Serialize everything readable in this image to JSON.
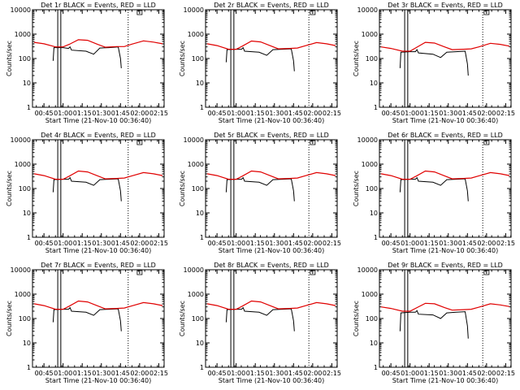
{
  "colors": {
    "events": "#000000",
    "lld": "#e00000",
    "background": "#ffffff"
  },
  "chart_data": {
    "type": "line",
    "panel_count": 9,
    "ylabel": "Counts/sec",
    "xlabel": "Start Time (21-Nov-10 00:36:40)",
    "y_scale": "log",
    "ylim": [
      1,
      10000
    ],
    "y_tick_labels": [
      "1",
      "10",
      "100",
      "1000",
      "10000"
    ],
    "xlim": [
      0.6,
      2.32
    ],
    "x_ticks": [
      0.75,
      1.0,
      1.25,
      1.5,
      1.75,
      2.0,
      2.25
    ],
    "x_tick_labels": [
      "00:45",
      "01:00",
      "01:15",
      "01:30",
      "01:45",
      "02:00",
      "02:15"
    ],
    "panels": [
      {
        "title": "Det 1r  BLACK = Events, RED = LLD",
        "vlines_solid": [
          0.93,
          0.97
        ],
        "vlines_dotted": [
          1.85
        ],
        "events": [
          [
            0.87,
            80
          ],
          [
            0.88,
            280
          ],
          [
            1.0,
            280
          ],
          [
            1.07,
            260
          ],
          [
            1.09,
            300
          ],
          [
            1.11,
            220
          ],
          [
            1.3,
            200
          ],
          [
            1.4,
            150
          ],
          [
            1.48,
            270
          ],
          [
            1.6,
            280
          ],
          [
            1.72,
            300
          ],
          [
            1.75,
            100
          ],
          [
            1.76,
            40
          ]
        ],
        "lld": [
          [
            0.62,
            460
          ],
          [
            0.75,
            400
          ],
          [
            0.9,
            300
          ],
          [
            1.0,
            300
          ],
          [
            1.08,
            380
          ],
          [
            1.2,
            590
          ],
          [
            1.32,
            560
          ],
          [
            1.45,
            380
          ],
          [
            1.55,
            290
          ],
          [
            1.7,
            310
          ],
          [
            1.8,
            310
          ],
          [
            1.9,
            390
          ],
          [
            2.05,
            530
          ],
          [
            2.18,
            470
          ],
          [
            2.3,
            400
          ]
        ]
      },
      {
        "title": "Det 2r  BLACK = Events, RED = LLD",
        "vlines_solid": [
          0.93,
          0.97
        ],
        "vlines_dotted": [
          1.95
        ],
        "events": [
          [
            0.87,
            70
          ],
          [
            0.88,
            230
          ],
          [
            1.0,
            240
          ],
          [
            1.07,
            240
          ],
          [
            1.09,
            280
          ],
          [
            1.11,
            200
          ],
          [
            1.3,
            180
          ],
          [
            1.4,
            135
          ],
          [
            1.48,
            230
          ],
          [
            1.6,
            240
          ],
          [
            1.72,
            250
          ],
          [
            1.75,
            80
          ],
          [
            1.76,
            30
          ]
        ],
        "lld": [
          [
            0.62,
            400
          ],
          [
            0.75,
            340
          ],
          [
            0.9,
            240
          ],
          [
            1.0,
            240
          ],
          [
            1.08,
            320
          ],
          [
            1.2,
            520
          ],
          [
            1.32,
            480
          ],
          [
            1.45,
            330
          ],
          [
            1.55,
            250
          ],
          [
            1.7,
            260
          ],
          [
            1.8,
            270
          ],
          [
            1.9,
            330
          ],
          [
            2.05,
            450
          ],
          [
            2.18,
            400
          ],
          [
            2.3,
            340
          ]
        ]
      },
      {
        "title": "Det 3r  BLACK = Events, RED = LLD",
        "vlines_solid": [
          0.93,
          0.97
        ],
        "vlines_dotted": [
          1.95
        ],
        "events": [
          [
            0.87,
            40
          ],
          [
            0.88,
            180
          ],
          [
            1.0,
            190
          ],
          [
            1.07,
            190
          ],
          [
            1.09,
            230
          ],
          [
            1.11,
            170
          ],
          [
            1.3,
            150
          ],
          [
            1.4,
            110
          ],
          [
            1.48,
            180
          ],
          [
            1.6,
            190
          ],
          [
            1.72,
            200
          ],
          [
            1.75,
            60
          ],
          [
            1.76,
            20
          ]
        ],
        "lld": [
          [
            0.62,
            300
          ],
          [
            0.75,
            260
          ],
          [
            0.9,
            200
          ],
          [
            1.0,
            200
          ],
          [
            1.08,
            280
          ],
          [
            1.2,
            460
          ],
          [
            1.32,
            430
          ],
          [
            1.45,
            300
          ],
          [
            1.55,
            230
          ],
          [
            1.7,
            240
          ],
          [
            1.8,
            250
          ],
          [
            1.9,
            300
          ],
          [
            2.05,
            420
          ],
          [
            2.18,
            380
          ],
          [
            2.3,
            320
          ]
        ]
      },
      {
        "title": "Det 4r  BLACK = Events, RED = LLD",
        "vlines_solid": [
          0.93,
          0.97
        ],
        "vlines_dotted": [
          1.85
        ],
        "events": [
          [
            0.87,
            70
          ],
          [
            0.88,
            230
          ],
          [
            1.0,
            240
          ],
          [
            1.07,
            240
          ],
          [
            1.09,
            280
          ],
          [
            1.11,
            200
          ],
          [
            1.3,
            180
          ],
          [
            1.4,
            135
          ],
          [
            1.48,
            230
          ],
          [
            1.6,
            240
          ],
          [
            1.72,
            250
          ],
          [
            1.75,
            80
          ],
          [
            1.76,
            30
          ]
        ],
        "lld": [
          [
            0.62,
            400
          ],
          [
            0.75,
            340
          ],
          [
            0.9,
            240
          ],
          [
            1.0,
            240
          ],
          [
            1.08,
            320
          ],
          [
            1.2,
            520
          ],
          [
            1.32,
            480
          ],
          [
            1.45,
            330
          ],
          [
            1.55,
            250
          ],
          [
            1.7,
            260
          ],
          [
            1.8,
            270
          ],
          [
            1.9,
            330
          ],
          [
            2.05,
            450
          ],
          [
            2.18,
            400
          ],
          [
            2.3,
            340
          ]
        ]
      },
      {
        "title": "Det 5r  BLACK = Events, RED = LLD",
        "vlines_solid": [
          0.93,
          0.97
        ],
        "vlines_dotted": [
          1.95
        ],
        "events": [
          [
            0.87,
            70
          ],
          [
            0.88,
            230
          ],
          [
            1.0,
            240
          ],
          [
            1.07,
            240
          ],
          [
            1.09,
            280
          ],
          [
            1.11,
            200
          ],
          [
            1.3,
            180
          ],
          [
            1.4,
            135
          ],
          [
            1.48,
            230
          ],
          [
            1.6,
            240
          ],
          [
            1.72,
            250
          ],
          [
            1.75,
            80
          ],
          [
            1.76,
            30
          ]
        ],
        "lld": [
          [
            0.62,
            400
          ],
          [
            0.75,
            340
          ],
          [
            0.9,
            240
          ],
          [
            1.0,
            240
          ],
          [
            1.08,
            320
          ],
          [
            1.2,
            520
          ],
          [
            1.32,
            480
          ],
          [
            1.45,
            330
          ],
          [
            1.55,
            250
          ],
          [
            1.7,
            260
          ],
          [
            1.8,
            270
          ],
          [
            1.9,
            330
          ],
          [
            2.05,
            450
          ],
          [
            2.18,
            400
          ],
          [
            2.3,
            340
          ]
        ]
      },
      {
        "title": "Det 6r  BLACK = Events, RED = LLD",
        "vlines_solid": [
          0.93,
          0.97
        ],
        "vlines_dotted": [
          1.95
        ],
        "events": [
          [
            0.87,
            70
          ],
          [
            0.88,
            230
          ],
          [
            1.0,
            240
          ],
          [
            1.07,
            240
          ],
          [
            1.09,
            280
          ],
          [
            1.11,
            200
          ],
          [
            1.3,
            180
          ],
          [
            1.4,
            135
          ],
          [
            1.48,
            230
          ],
          [
            1.6,
            240
          ],
          [
            1.72,
            250
          ],
          [
            1.75,
            80
          ],
          [
            1.76,
            30
          ]
        ],
        "lld": [
          [
            0.62,
            400
          ],
          [
            0.75,
            340
          ],
          [
            0.9,
            240
          ],
          [
            1.0,
            240
          ],
          [
            1.08,
            320
          ],
          [
            1.2,
            520
          ],
          [
            1.32,
            480
          ],
          [
            1.45,
            330
          ],
          [
            1.55,
            250
          ],
          [
            1.7,
            260
          ],
          [
            1.8,
            270
          ],
          [
            1.9,
            330
          ],
          [
            2.05,
            450
          ],
          [
            2.18,
            400
          ],
          [
            2.3,
            340
          ]
        ]
      },
      {
        "title": "Det 7r  BLACK = Events, RED = LLD",
        "vlines_solid": [
          0.93,
          0.97
        ],
        "vlines_dotted": [
          1.85
        ],
        "events": [
          [
            0.87,
            70
          ],
          [
            0.88,
            230
          ],
          [
            1.0,
            240
          ],
          [
            1.07,
            240
          ],
          [
            1.09,
            280
          ],
          [
            1.11,
            200
          ],
          [
            1.3,
            180
          ],
          [
            1.4,
            135
          ],
          [
            1.48,
            230
          ],
          [
            1.6,
            240
          ],
          [
            1.72,
            250
          ],
          [
            1.75,
            80
          ],
          [
            1.76,
            30
          ]
        ],
        "lld": [
          [
            0.62,
            400
          ],
          [
            0.75,
            340
          ],
          [
            0.9,
            240
          ],
          [
            1.0,
            240
          ],
          [
            1.08,
            320
          ],
          [
            1.2,
            520
          ],
          [
            1.32,
            480
          ],
          [
            1.45,
            330
          ],
          [
            1.55,
            250
          ],
          [
            1.7,
            260
          ],
          [
            1.8,
            270
          ],
          [
            1.9,
            330
          ],
          [
            2.05,
            450
          ],
          [
            2.18,
            400
          ],
          [
            2.3,
            340
          ]
        ]
      },
      {
        "title": "Det 8r  BLACK = Events, RED = LLD",
        "vlines_solid": [
          0.93,
          0.97
        ],
        "vlines_dotted": [
          1.95
        ],
        "events": [
          [
            0.87,
            70
          ],
          [
            0.88,
            230
          ],
          [
            1.0,
            240
          ],
          [
            1.07,
            240
          ],
          [
            1.09,
            280
          ],
          [
            1.11,
            200
          ],
          [
            1.3,
            180
          ],
          [
            1.4,
            135
          ],
          [
            1.48,
            230
          ],
          [
            1.6,
            240
          ],
          [
            1.72,
            250
          ],
          [
            1.75,
            80
          ],
          [
            1.76,
            30
          ]
        ],
        "lld": [
          [
            0.62,
            400
          ],
          [
            0.75,
            340
          ],
          [
            0.9,
            240
          ],
          [
            1.0,
            240
          ],
          [
            1.08,
            320
          ],
          [
            1.2,
            520
          ],
          [
            1.32,
            480
          ],
          [
            1.45,
            330
          ],
          [
            1.55,
            250
          ],
          [
            1.7,
            260
          ],
          [
            1.8,
            270
          ],
          [
            1.9,
            330
          ],
          [
            2.05,
            450
          ],
          [
            2.18,
            400
          ],
          [
            2.3,
            340
          ]
        ]
      },
      {
        "title": "Det 9r  BLACK = Events, RED = LLD",
        "vlines_solid": [
          0.93,
          0.97
        ],
        "vlines_dotted": [
          1.95
        ],
        "events": [
          [
            0.87,
            30
          ],
          [
            0.88,
            170
          ],
          [
            1.0,
            180
          ],
          [
            1.07,
            180
          ],
          [
            1.09,
            210
          ],
          [
            1.11,
            150
          ],
          [
            1.3,
            140
          ],
          [
            1.4,
            100
          ],
          [
            1.48,
            170
          ],
          [
            1.6,
            180
          ],
          [
            1.72,
            190
          ],
          [
            1.75,
            50
          ],
          [
            1.76,
            15
          ]
        ],
        "lld": [
          [
            0.62,
            300
          ],
          [
            0.75,
            260
          ],
          [
            0.9,
            200
          ],
          [
            1.0,
            200
          ],
          [
            1.08,
            270
          ],
          [
            1.2,
            420
          ],
          [
            1.32,
            400
          ],
          [
            1.45,
            280
          ],
          [
            1.55,
            220
          ],
          [
            1.7,
            230
          ],
          [
            1.8,
            240
          ],
          [
            1.9,
            290
          ],
          [
            2.05,
            400
          ],
          [
            2.18,
            360
          ],
          [
            2.3,
            310
          ]
        ]
      }
    ]
  }
}
